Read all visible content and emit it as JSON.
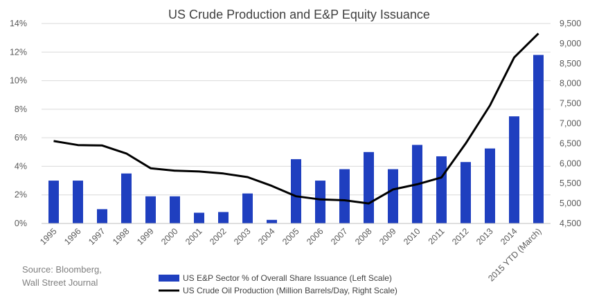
{
  "chart_data": {
    "type": "bar",
    "title": "US Crude Production and E&P Equity Issuance",
    "categories": [
      "1995",
      "1996",
      "1997",
      "1998",
      "1999",
      "2000",
      "2001",
      "2002",
      "2003",
      "2004",
      "2005",
      "2006",
      "2007",
      "2008",
      "2009",
      "2010",
      "2011",
      "2012",
      "2013",
      "2014",
      "2015 YTD (March)"
    ],
    "series": [
      {
        "name": "US E&P Sector % of Overall Share Issuance (Left Scale)",
        "type": "bar",
        "axis": "left",
        "color": "#1f3fbf",
        "values": [
          3.0,
          3.0,
          1.0,
          3.5,
          1.9,
          1.9,
          0.75,
          0.8,
          2.1,
          0.25,
          4.5,
          3.0,
          3.8,
          5.0,
          3.8,
          5.5,
          4.7,
          4.3,
          5.25,
          7.5,
          11.8
        ]
      },
      {
        "name": "US Crude Oil Production (Million Barrels/Day, Right Scale)",
        "type": "line",
        "axis": "right",
        "color": "#000000",
        "values": [
          6560,
          6460,
          6450,
          6250,
          5880,
          5820,
          5800,
          5750,
          5660,
          5440,
          5180,
          5100,
          5080,
          5000,
          5350,
          5480,
          5650,
          6500,
          7450,
          8650,
          9250
        ]
      }
    ],
    "left_axis": {
      "ylim": [
        0,
        14
      ],
      "ticks": [
        "0%",
        "2%",
        "4%",
        "6%",
        "8%",
        "10%",
        "12%",
        "14%"
      ]
    },
    "right_axis": {
      "ylim": [
        4500,
        9500
      ],
      "ticks": [
        "4,500",
        "5,000",
        "5,500",
        "6,000",
        "6,500",
        "7,000",
        "7,500",
        "8,000",
        "8,500",
        "9,000",
        "9,500"
      ]
    },
    "grid": "horizontal",
    "legend_position": "bottom"
  },
  "source_note": [
    "Source: Bloomberg,",
    "Wall Street Journal"
  ]
}
